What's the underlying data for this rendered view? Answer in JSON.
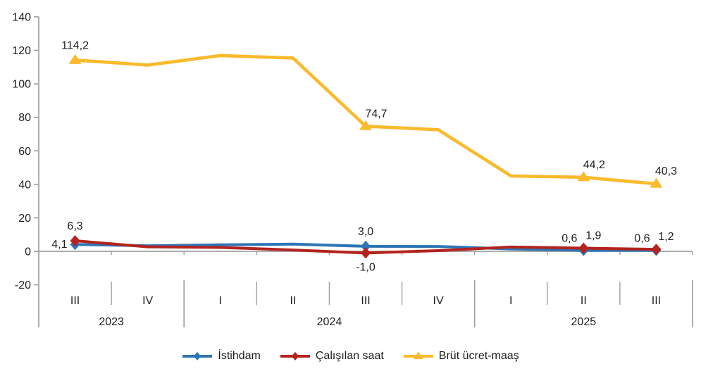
{
  "chart_data": {
    "type": "line",
    "title": "",
    "x_axis": {
      "quarters": [
        "III",
        "IV",
        "I",
        "II",
        "III",
        "IV",
        "I",
        "II",
        "III"
      ],
      "year_groups": [
        {
          "label": "2023",
          "span": 2
        },
        {
          "label": "2024",
          "span": 4
        },
        {
          "label": "2025",
          "span": 3
        }
      ]
    },
    "y_axis": {
      "min": -20,
      "max": 140,
      "step": 20,
      "tick_labels": [
        "140",
        "120",
        "100",
        "80",
        "60",
        "40",
        "20",
        "0",
        "-20"
      ]
    },
    "series": [
      {
        "name": "İstihdam",
        "color": "#2E75B6",
        "marker": "diamond",
        "values": [
          4.1,
          3.3,
          3.9,
          4.3,
          3.0,
          2.9,
          1.4,
          0.6,
          0.6
        ]
      },
      {
        "name": "Çalışılan saat",
        "color": "#B4231D",
        "marker": "diamond",
        "values": [
          6.3,
          2.7,
          2.3,
          0.8,
          -1.0,
          0.4,
          2.6,
          1.9,
          1.2
        ]
      },
      {
        "name": "Brüt ücret-maaş",
        "color": "#FBBA2C",
        "marker": "triangle",
        "values": [
          114.2,
          111.2,
          116.9,
          115.4,
          74.7,
          72.6,
          45.0,
          44.2,
          40.3
        ]
      }
    ],
    "marker_indices": [
      0,
      4,
      7,
      8
    ],
    "labeled_points": [
      {
        "series": 0,
        "index": 0,
        "text": "4,1",
        "placement": "left"
      },
      {
        "series": 0,
        "index": 4,
        "text": "3,0",
        "placement": "above"
      },
      {
        "series": 0,
        "index": 7,
        "text": "0,6",
        "placement": "above-left"
      },
      {
        "series": 0,
        "index": 8,
        "text": "0,6",
        "placement": "above-left"
      },
      {
        "series": 1,
        "index": 0,
        "text": "6,3",
        "placement": "above"
      },
      {
        "series": 1,
        "index": 4,
        "text": "-1,0",
        "placement": "below"
      },
      {
        "series": 1,
        "index": 7,
        "text": "1,9",
        "placement": "above-right"
      },
      {
        "series": 1,
        "index": 8,
        "text": "1,2",
        "placement": "above-right"
      },
      {
        "series": 2,
        "index": 0,
        "text": "114,2",
        "placement": "above"
      },
      {
        "series": 2,
        "index": 4,
        "text": "74,7",
        "placement": "above-right-slight"
      },
      {
        "series": 2,
        "index": 7,
        "text": "44,2",
        "placement": "above-right-slight"
      },
      {
        "series": 2,
        "index": 8,
        "text": "40,3",
        "placement": "above-right"
      }
    ],
    "legend_position": "bottom"
  },
  "colors": {
    "axis": "#A0A0A0",
    "text": "#1F1F1F",
    "background": "#FFFFFF"
  }
}
